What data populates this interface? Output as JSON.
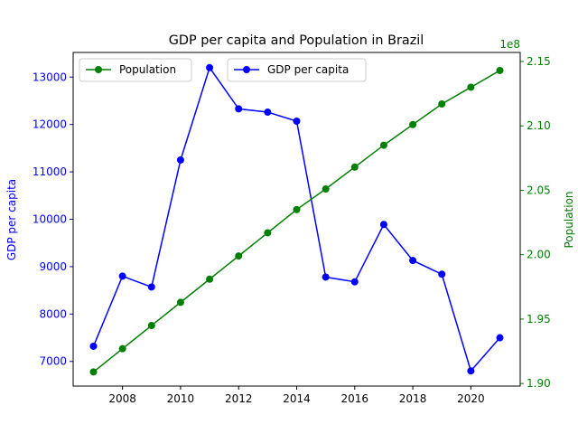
{
  "chart_data": {
    "type": "line",
    "title": "GDP per capita and Population in Brazil",
    "x": [
      2007,
      2008,
      2009,
      2010,
      2011,
      2012,
      2013,
      2014,
      2015,
      2016,
      2017,
      2018,
      2019,
      2020,
      2021
    ],
    "x_ticks": [
      "2008",
      "2010",
      "2012",
      "2014",
      "2016",
      "2018",
      "2020"
    ],
    "x_tick_values": [
      2008,
      2010,
      2012,
      2014,
      2016,
      2018,
      2020
    ],
    "xlim": [
      2006.3,
      2021.7
    ],
    "left_axis": {
      "label": "GDP per capita",
      "color": "#0000ff",
      "ylim": [
        6480,
        13520
      ],
      "ticks": [
        "7000",
        "8000",
        "9000",
        "10000",
        "11000",
        "12000",
        "13000"
      ],
      "tick_values": [
        7000,
        8000,
        9000,
        10000,
        11000,
        12000,
        13000
      ]
    },
    "right_axis": {
      "label": "Population",
      "color": "#008000",
      "offset_text": "1e8",
      "ylim": [
        1.898,
        2.157
      ],
      "ticks": [
        "1.90",
        "1.95",
        "2.00",
        "2.05",
        "2.10",
        "2.15"
      ],
      "tick_values": [
        1.9,
        1.95,
        2.0,
        2.05,
        2.1,
        2.15
      ]
    },
    "series": [
      {
        "name": "GDP per capita",
        "axis": "left",
        "color": "#0000ff",
        "values": [
          7320,
          8800,
          8570,
          11250,
          13200,
          12330,
          12260,
          12070,
          8780,
          8680,
          9890,
          9130,
          8840,
          6800,
          7500
        ]
      },
      {
        "name": "Population",
        "axis": "right",
        "color": "#008000",
        "values": [
          1.909,
          1.927,
          1.945,
          1.963,
          1.981,
          1.999,
          2.017,
          2.035,
          2.051,
          2.068,
          2.085,
          2.101,
          2.117,
          2.13,
          2.143
        ]
      }
    ],
    "legends": [
      {
        "position": "upper-left",
        "entries": [
          "Population"
        ]
      },
      {
        "position": "upper-center",
        "entries": [
          "GDP per capita"
        ]
      }
    ]
  }
}
